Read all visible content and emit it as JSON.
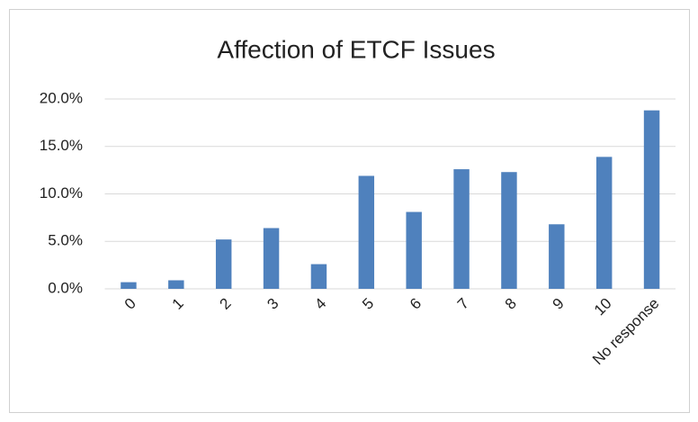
{
  "chart_data": {
    "type": "bar",
    "title": "Affection of ETCF Issues",
    "categories": [
      "0",
      "1",
      "2",
      "3",
      "4",
      "5",
      "6",
      "7",
      "8",
      "9",
      "10",
      "No response"
    ],
    "values": [
      0.7,
      0.9,
      5.2,
      6.4,
      2.6,
      11.9,
      8.1,
      12.6,
      12.3,
      6.8,
      13.9,
      18.8
    ],
    "color": "#4f81bd",
    "ylim": [
      0,
      20
    ],
    "yticks": [
      {
        "value": 0,
        "label": "0.0%"
      },
      {
        "value": 5,
        "label": "5.0%"
      },
      {
        "value": 10,
        "label": "10.0%"
      },
      {
        "value": 15,
        "label": "15.0%"
      },
      {
        "value": 20,
        "label": "20.0%"
      }
    ],
    "grid": true
  }
}
